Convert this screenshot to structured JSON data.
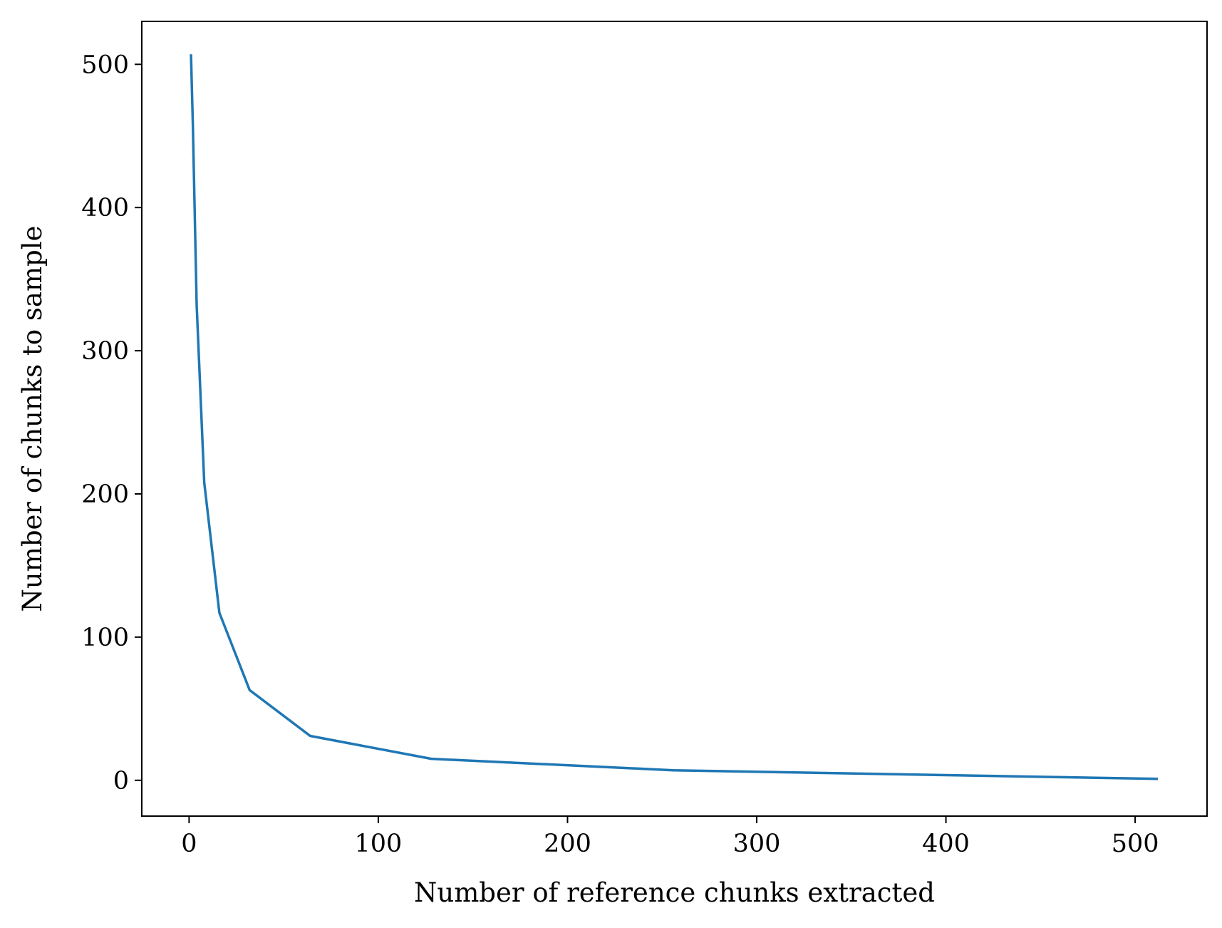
{
  "chart_data": {
    "type": "line",
    "title": "",
    "xlabel": "Number of reference chunks extracted",
    "ylabel": "Number of chunks to sample",
    "xlim": [
      -25,
      538
    ],
    "ylim": [
      -25,
      530
    ],
    "xticks": [
      0,
      100,
      200,
      300,
      400,
      500
    ],
    "yticks": [
      0,
      100,
      200,
      300,
      400,
      500
    ],
    "grid": false,
    "legend": "none",
    "series": [
      {
        "color": "#1f77b4",
        "x": [
          1,
          2,
          4,
          8,
          16,
          32,
          64,
          128,
          256,
          512
        ],
        "y": [
          507,
          457,
          332,
          208,
          117,
          63,
          31,
          15,
          7,
          1
        ]
      }
    ]
  }
}
